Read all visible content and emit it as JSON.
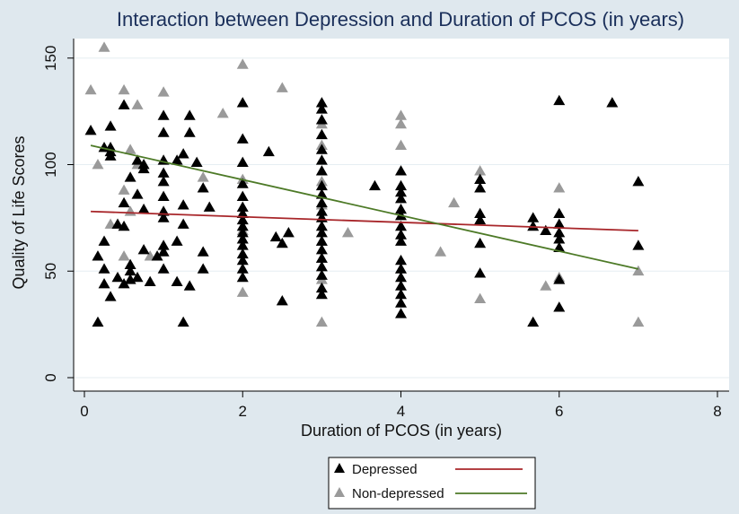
{
  "chart_data": {
    "type": "scatter",
    "title": "Interaction between Depression and Duration of PCOS (in years)",
    "xlabel": "Duration of PCOS (in years)",
    "ylabel": "Quality of Life Scores",
    "xlim": [
      0,
      8
    ],
    "ylim": [
      0,
      160
    ],
    "xticks": [
      "0",
      "2",
      "4",
      "6",
      "8"
    ],
    "yticks": [
      "0",
      "50",
      "100",
      "150"
    ],
    "grid": true,
    "legend_position": "bottom",
    "series": [
      {
        "name": "Depressed",
        "color": "#000000",
        "marker": "triangle",
        "points": [
          [
            0.08,
            116
          ],
          [
            0.17,
            26
          ],
          [
            0.17,
            57
          ],
          [
            0.25,
            64
          ],
          [
            0.25,
            108
          ],
          [
            0.25,
            51
          ],
          [
            0.25,
            44
          ],
          [
            0.33,
            38
          ],
          [
            0.33,
            106
          ],
          [
            0.33,
            104
          ],
          [
            0.33,
            118
          ],
          [
            0.33,
            108
          ],
          [
            0.42,
            47
          ],
          [
            0.42,
            72
          ],
          [
            0.5,
            128
          ],
          [
            0.5,
            82
          ],
          [
            0.5,
            44
          ],
          [
            0.5,
            71
          ],
          [
            0.58,
            46
          ],
          [
            0.58,
            53
          ],
          [
            0.58,
            94
          ],
          [
            0.58,
            50
          ],
          [
            0.67,
            86
          ],
          [
            0.67,
            47
          ],
          [
            0.67,
            102
          ],
          [
            0.75,
            100
          ],
          [
            0.75,
            98
          ],
          [
            0.75,
            60
          ],
          [
            0.75,
            79
          ],
          [
            0.83,
            45
          ],
          [
            0.92,
            57
          ],
          [
            1.0,
            123
          ],
          [
            1.0,
            115
          ],
          [
            1.0,
            102
          ],
          [
            1.0,
            96
          ],
          [
            1.0,
            92
          ],
          [
            1.0,
            85
          ],
          [
            1.0,
            78
          ],
          [
            1.0,
            75
          ],
          [
            1.0,
            62
          ],
          [
            1.0,
            59
          ],
          [
            1.0,
            51
          ],
          [
            1.17,
            102
          ],
          [
            1.17,
            64
          ],
          [
            1.17,
            45
          ],
          [
            1.25,
            26
          ],
          [
            1.25,
            81
          ],
          [
            1.25,
            72
          ],
          [
            1.25,
            105
          ],
          [
            1.33,
            123
          ],
          [
            1.33,
            115
          ],
          [
            1.33,
            43
          ],
          [
            1.42,
            101
          ],
          [
            1.5,
            89
          ],
          [
            1.5,
            59
          ],
          [
            1.5,
            51
          ],
          [
            1.58,
            80
          ],
          [
            2,
            129
          ],
          [
            2,
            112
          ],
          [
            2,
            101
          ],
          [
            2,
            91
          ],
          [
            2,
            85
          ],
          [
            2,
            80
          ],
          [
            2,
            77
          ],
          [
            2,
            74
          ],
          [
            2,
            71
          ],
          [
            2,
            68
          ],
          [
            2,
            65
          ],
          [
            2,
            62
          ],
          [
            2,
            58
          ],
          [
            2,
            55
          ],
          [
            2,
            51
          ],
          [
            2,
            47
          ],
          [
            2.33,
            106
          ],
          [
            2.42,
            66
          ],
          [
            2.5,
            63
          ],
          [
            2.5,
            36
          ],
          [
            2.58,
            68
          ],
          [
            3,
            129
          ],
          [
            3,
            126
          ],
          [
            3,
            121
          ],
          [
            3,
            114
          ],
          [
            3,
            107
          ],
          [
            3,
            102
          ],
          [
            3,
            97
          ],
          [
            3,
            90
          ],
          [
            3,
            86
          ],
          [
            3,
            82
          ],
          [
            3,
            78
          ],
          [
            3,
            75
          ],
          [
            3,
            71
          ],
          [
            3,
            68
          ],
          [
            3,
            64
          ],
          [
            3,
            60
          ],
          [
            3,
            56
          ],
          [
            3,
            52
          ],
          [
            3,
            48
          ],
          [
            3,
            42
          ],
          [
            3,
            39
          ],
          [
            3.67,
            90
          ],
          [
            4,
            97
          ],
          [
            4,
            90
          ],
          [
            4,
            87
          ],
          [
            4,
            84
          ],
          [
            4,
            79
          ],
          [
            4,
            76
          ],
          [
            4,
            71
          ],
          [
            4,
            67
          ],
          [
            4,
            64
          ],
          [
            4,
            55
          ],
          [
            4,
            51
          ],
          [
            4,
            47
          ],
          [
            4,
            43
          ],
          [
            4,
            39
          ],
          [
            4,
            35
          ],
          [
            4,
            30
          ],
          [
            5,
            93
          ],
          [
            5,
            89
          ],
          [
            5,
            77
          ],
          [
            5,
            74
          ],
          [
            5,
            63
          ],
          [
            5,
            49
          ],
          [
            5.67,
            75
          ],
          [
            5.67,
            71
          ],
          [
            5.67,
            26
          ],
          [
            5.83,
            69
          ],
          [
            6,
            130
          ],
          [
            6,
            77
          ],
          [
            6,
            72
          ],
          [
            6,
            68
          ],
          [
            6,
            65
          ],
          [
            6,
            61
          ],
          [
            6,
            46
          ],
          [
            6,
            33
          ],
          [
            6.67,
            129
          ],
          [
            7,
            92
          ],
          [
            7,
            62
          ]
        ]
      },
      {
        "name": "Non-depressed",
        "color": "#9a9a9a",
        "marker": "triangle",
        "points": [
          [
            0.08,
            135
          ],
          [
            0.17,
            100
          ],
          [
            0.25,
            155
          ],
          [
            0.33,
            72
          ],
          [
            0.5,
            135
          ],
          [
            0.5,
            88
          ],
          [
            0.5,
            57
          ],
          [
            0.58,
            107
          ],
          [
            0.58,
            78
          ],
          [
            0.67,
            128
          ],
          [
            0.67,
            100
          ],
          [
            0.83,
            57
          ],
          [
            1.0,
            134
          ],
          [
            1.5,
            94
          ],
          [
            1.75,
            124
          ],
          [
            2,
            147
          ],
          [
            2,
            93
          ],
          [
            2,
            69
          ],
          [
            2,
            40
          ],
          [
            2.5,
            136
          ],
          [
            3,
            119
          ],
          [
            3,
            109
          ],
          [
            3,
            92
          ],
          [
            3,
            81
          ],
          [
            3,
            64
          ],
          [
            3,
            56
          ],
          [
            3,
            46
          ],
          [
            3,
            26
          ],
          [
            3.33,
            68
          ],
          [
            4,
            123
          ],
          [
            4,
            119
          ],
          [
            4,
            109
          ],
          [
            4,
            51
          ],
          [
            4.5,
            59
          ],
          [
            4.67,
            82
          ],
          [
            5,
            97
          ],
          [
            5,
            37
          ],
          [
            5.83,
            43
          ],
          [
            6,
            89
          ],
          [
            6,
            47
          ],
          [
            7,
            50
          ],
          [
            7,
            26
          ]
        ]
      },
      {
        "name": "Depressed",
        "type": "fit_line",
        "color": "#a8262a",
        "x": [
          0.08,
          7
        ],
        "y": [
          78,
          69
        ]
      },
      {
        "name": "Non-depressed",
        "type": "fit_line",
        "color": "#4d7a27",
        "x": [
          0.08,
          7
        ],
        "y": [
          109,
          51
        ]
      }
    ]
  }
}
